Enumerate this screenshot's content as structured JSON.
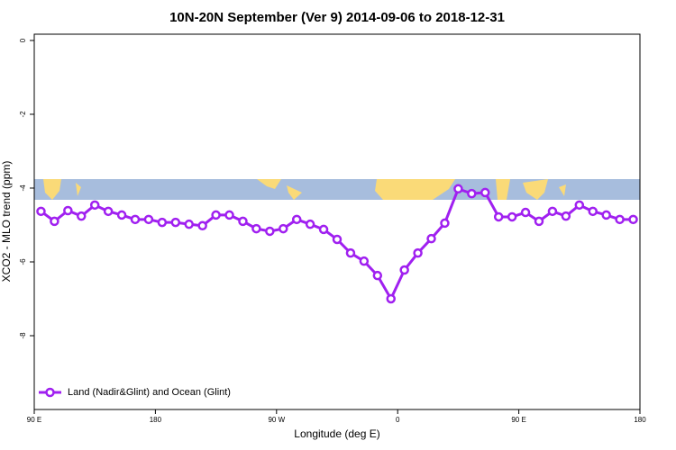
{
  "chart_data": {
    "type": "line",
    "title": "10N-20N September (Ver 9)   2014-09-06 to 2018-12-31",
    "x_label": "Longitude (deg E)",
    "y_label": "XCO2 - MLO trend (ppm)",
    "x": [
      95,
      105,
      115,
      125,
      135,
      145,
      155,
      165,
      175,
      185,
      195,
      205,
      215,
      225,
      235,
      245,
      255,
      265,
      275,
      285,
      295,
      305,
      315,
      325,
      335,
      345,
      355,
      365,
      375,
      385,
      395,
      405,
      415,
      425,
      435,
      445,
      455,
      465,
      475,
      485,
      495,
      505,
      515,
      525,
      535
    ],
    "series": [
      {
        "name": "Land (Nadir&Glint) and Ocean (Glint)",
        "color": "#a020f0",
        "values": [
          -4.63,
          -4.9,
          -4.61,
          -4.76,
          -4.46,
          -4.63,
          -4.73,
          -4.85,
          -4.85,
          -4.93,
          -4.93,
          -4.98,
          -5.02,
          -4.73,
          -4.73,
          -4.9,
          -5.1,
          -5.17,
          -5.1,
          -4.85,
          -4.98,
          -5.12,
          -5.39,
          -5.76,
          -5.98,
          -6.37,
          -7.0,
          -6.22,
          -5.76,
          -5.37,
          -4.95,
          -4.02,
          -4.15,
          -4.12,
          -4.78,
          -4.78,
          -4.66,
          -4.9,
          -4.63,
          -4.76,
          -4.46,
          -4.63,
          -4.73,
          -4.85,
          -4.85
        ]
      }
    ],
    "xlim": [
      90,
      540
    ],
    "xticks": [
      {
        "value": 90,
        "label": "90 E"
      },
      {
        "value": 180,
        "label": "180"
      },
      {
        "value": 270,
        "label": "90 W"
      },
      {
        "value": 360,
        "label": "0"
      },
      {
        "value": 450,
        "label": "90 E"
      },
      {
        "value": 540,
        "label": "180"
      }
    ],
    "ylim": [
      -10,
      0.17
    ],
    "yticks": [
      0,
      -2,
      -4,
      -6,
      -8
    ],
    "grid": false,
    "legend": "bottom-left"
  }
}
